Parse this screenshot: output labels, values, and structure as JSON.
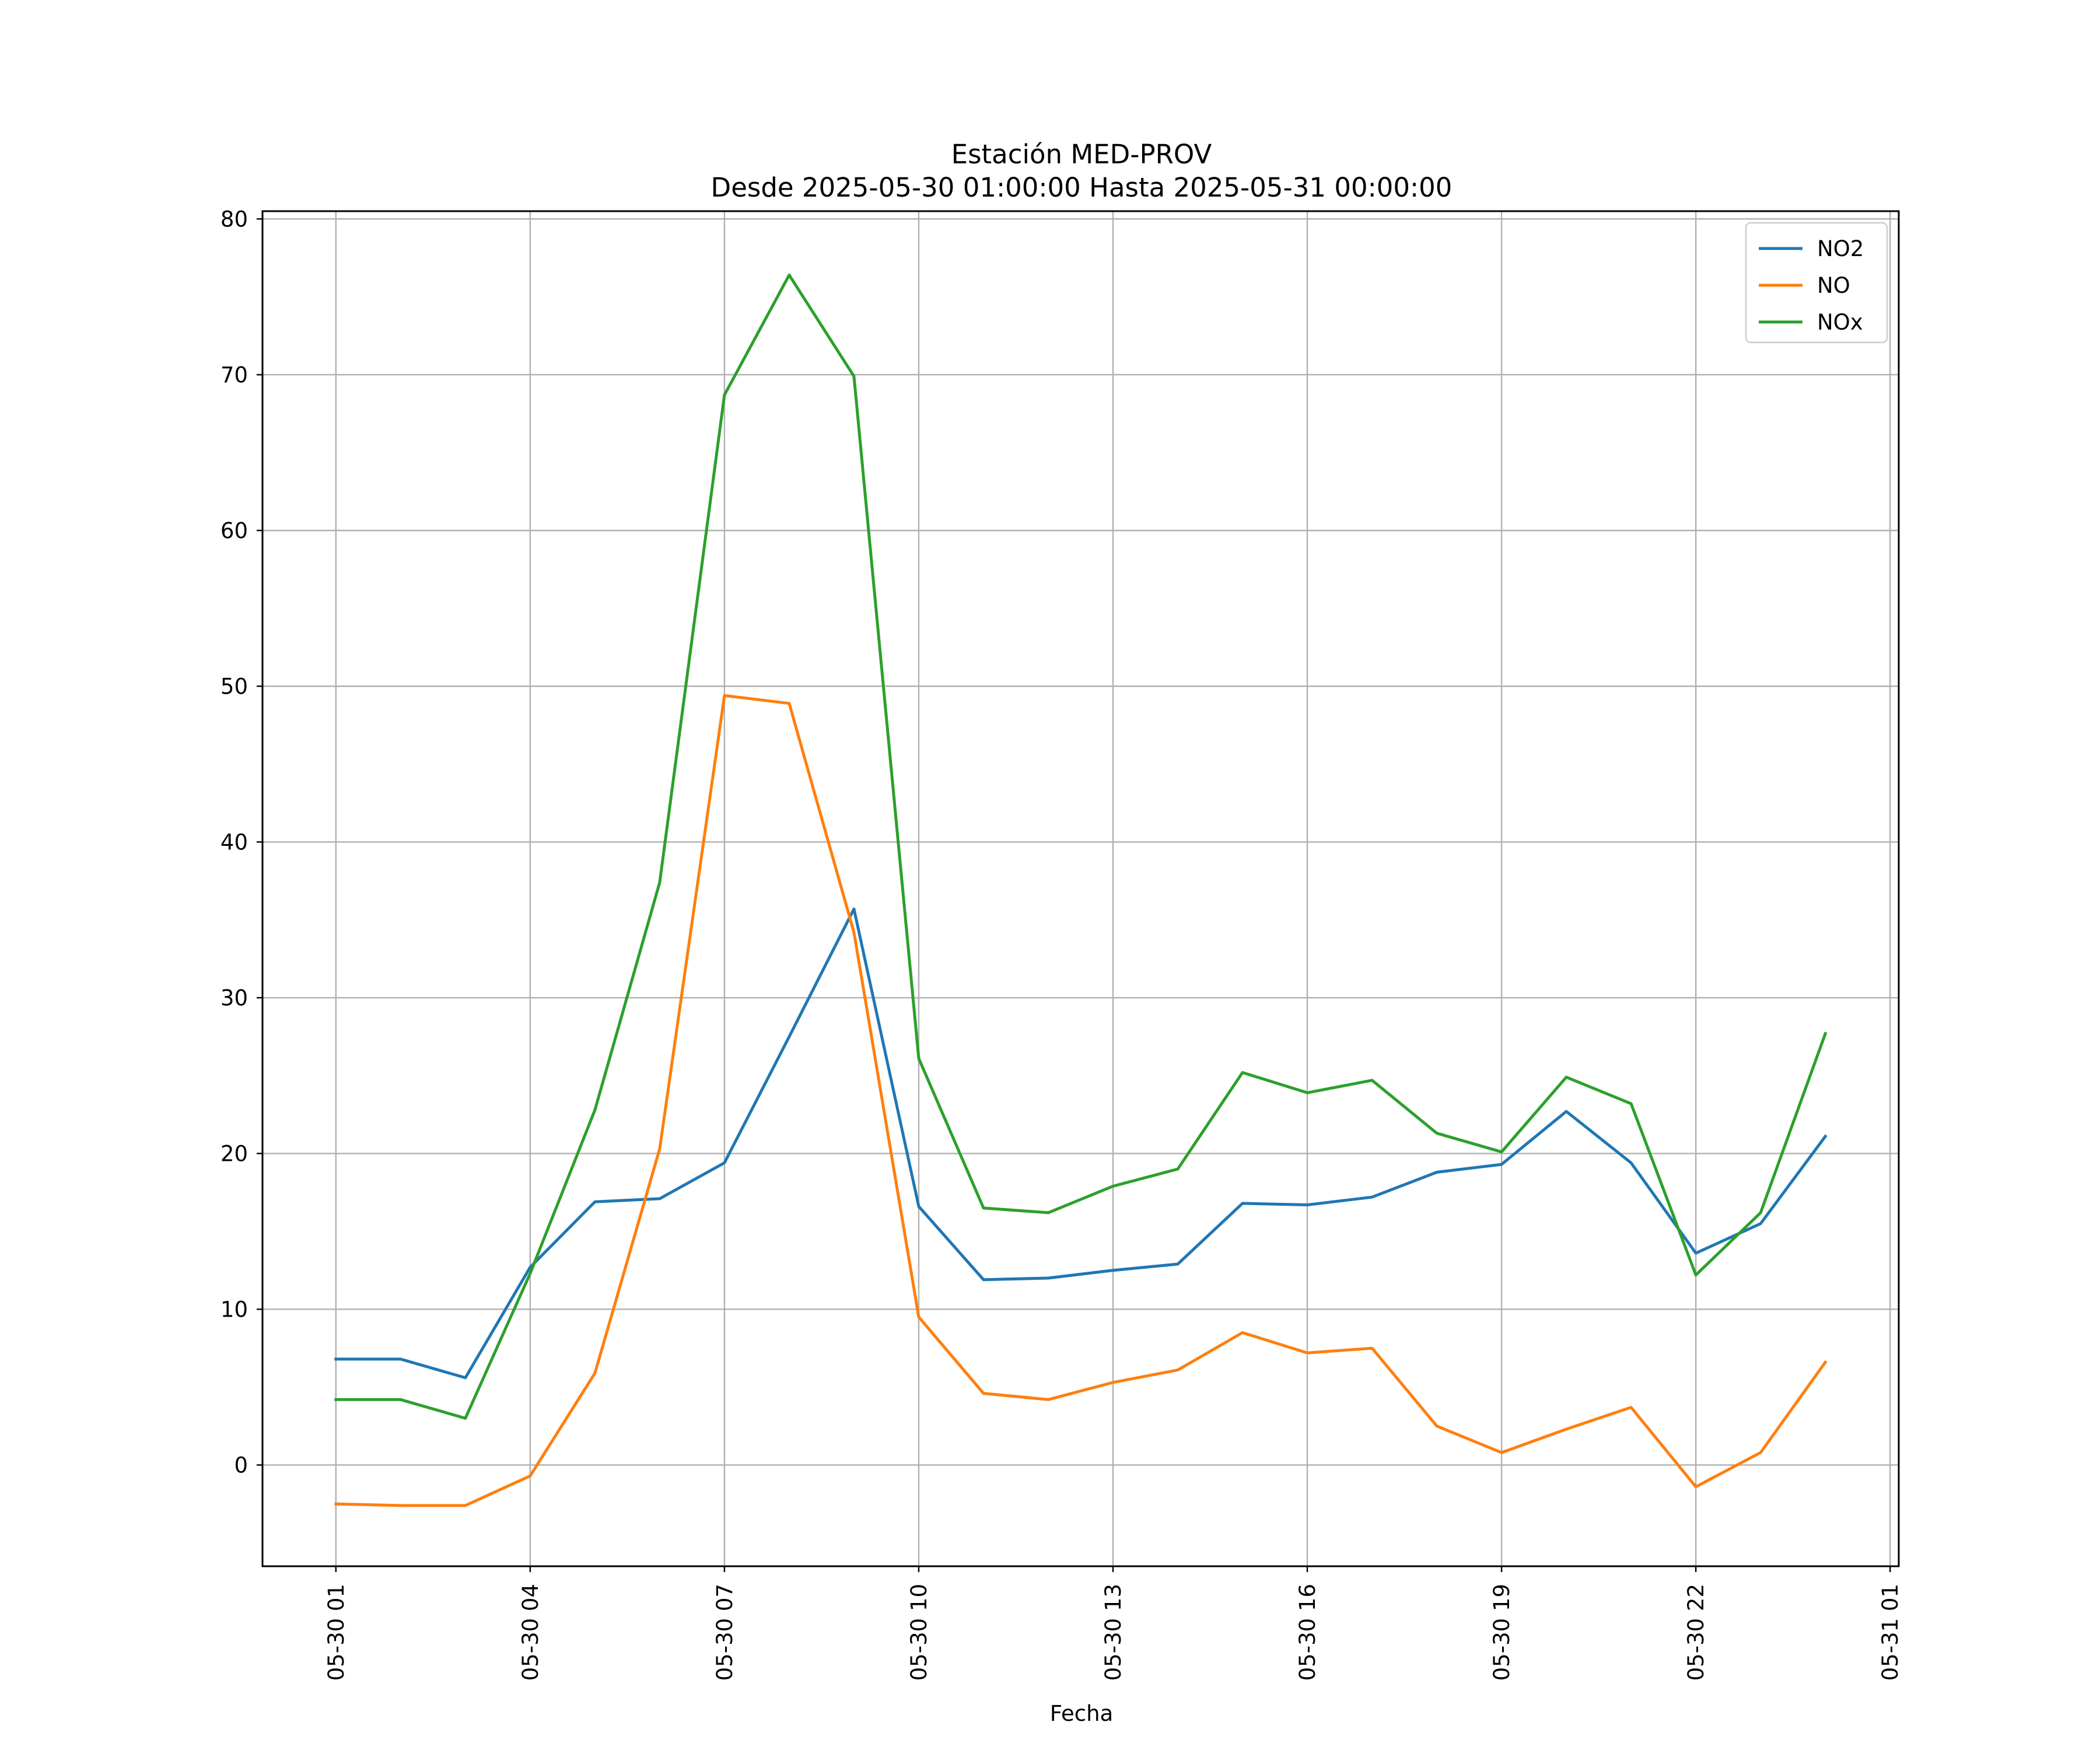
{
  "chart_data": {
    "type": "line",
    "title": "Estación MED-PROV",
    "subtitle": "Desde 2025-05-30 01:00:00 Hasta 2025-05-31 00:00:00",
    "xlabel": "Fecha",
    "ylabel": "",
    "grid": true,
    "legend_position": "top-right",
    "x": [
      "2025-05-30 01:00",
      "2025-05-30 02:00",
      "2025-05-30 03:00",
      "2025-05-30 04:00",
      "2025-05-30 05:00",
      "2025-05-30 06:00",
      "2025-05-30 07:00",
      "2025-05-30 08:00",
      "2025-05-30 09:00",
      "2025-05-30 10:00",
      "2025-05-30 11:00",
      "2025-05-30 12:00",
      "2025-05-30 13:00",
      "2025-05-30 14:00",
      "2025-05-30 15:00",
      "2025-05-30 16:00",
      "2025-05-30 17:00",
      "2025-05-30 18:00",
      "2025-05-30 19:00",
      "2025-05-30 20:00",
      "2025-05-30 21:00",
      "2025-05-30 22:00",
      "2025-05-30 23:00",
      "2025-05-31 00:00"
    ],
    "xlim": [
      "2025-05-29 23:52",
      "2025-05-31 01:08"
    ],
    "xticks": [
      "2025-05-30 01:00",
      "2025-05-30 04:00",
      "2025-05-30 07:00",
      "2025-05-30 10:00",
      "2025-05-30 13:00",
      "2025-05-30 16:00",
      "2025-05-30 19:00",
      "2025-05-30 22:00",
      "2025-05-31 01:00"
    ],
    "xtick_labels": [
      "05-30 01",
      "05-30 04",
      "05-30 07",
      "05-30 10",
      "05-30 13",
      "05-30 16",
      "05-30 19",
      "05-30 22",
      "05-31 01"
    ],
    "ylim": [
      -6.5,
      80.5
    ],
    "yticks": [
      0,
      10,
      20,
      30,
      40,
      50,
      60,
      70,
      80
    ],
    "series": [
      {
        "name": "NO2",
        "color": "#1f77b4",
        "values": [
          6.8,
          6.8,
          5.6,
          12.7,
          16.9,
          17.1,
          19.4,
          27.5,
          35.7,
          16.6,
          11.9,
          12.0,
          12.5,
          12.9,
          16.8,
          16.7,
          17.2,
          18.8,
          19.3,
          22.7,
          19.4,
          13.6,
          15.5,
          21.1
        ]
      },
      {
        "name": "NO",
        "color": "#ff7f0e",
        "values": [
          -2.5,
          -2.6,
          -2.6,
          -0.7,
          5.9,
          20.3,
          49.4,
          48.9,
          34.2,
          9.5,
          4.6,
          4.2,
          5.3,
          6.1,
          8.5,
          7.2,
          7.5,
          2.5,
          0.8,
          2.3,
          3.7,
          -1.4,
          0.8,
          6.6
        ]
      },
      {
        "name": "NOx",
        "color": "#2ca02c",
        "values": [
          4.2,
          4.2,
          3.0,
          12.3,
          22.8,
          37.4,
          68.7,
          76.4,
          69.9,
          26.1,
          16.5,
          16.2,
          17.9,
          19.0,
          25.2,
          23.9,
          24.7,
          21.3,
          20.1,
          24.9,
          23.2,
          12.2,
          16.2,
          27.7
        ]
      }
    ]
  }
}
